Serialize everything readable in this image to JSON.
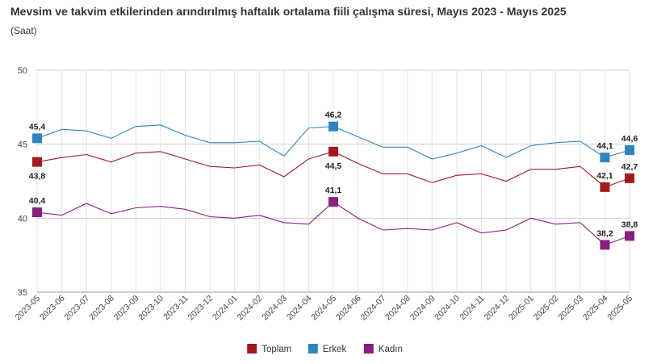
{
  "chart_data": {
    "type": "line",
    "title": "Mevsim ve takvim etkilerinden arındırılmış haftalık ortalama fiili çalışma süresi, Mayıs 2023 - Mayıs 2025",
    "subtitle": "(Saat)",
    "xlabel": "",
    "ylabel": "",
    "ylim": [
      35,
      50
    ],
    "yticks": [
      "35",
      "40",
      "45",
      "50"
    ],
    "grid": "vertical",
    "legend_position": "bottom-center",
    "categories": [
      "2023-05",
      "2023-06",
      "2023-07",
      "2023-08",
      "2023-09",
      "2023-10",
      "2023-11",
      "2023-12",
      "2024-01",
      "2024-02",
      "2024-03",
      "2024-04",
      "2024-05",
      "2024-06",
      "2024-07",
      "2024-08",
      "2024-09",
      "2024-10",
      "2024-11",
      "2024-12",
      "2025-01",
      "2025-02",
      "2025-03",
      "2025-04",
      "2025-05"
    ],
    "series": [
      {
        "name": "Toplam",
        "color": "#a31a1e",
        "values": [
          43.8,
          44.1,
          44.3,
          43.8,
          44.4,
          44.5,
          44.0,
          43.5,
          43.4,
          43.6,
          42.8,
          44.0,
          44.5,
          43.7,
          43.0,
          43.0,
          42.4,
          42.9,
          43.0,
          42.5,
          43.3,
          43.3,
          43.5,
          42.1,
          42.7
        ],
        "labels": [
          {
            "index": 0,
            "text": "43,8",
            "pos": "below"
          },
          {
            "index": 12,
            "text": "44,5",
            "pos": "below"
          },
          {
            "index": 23,
            "text": "42,1",
            "pos": "above"
          },
          {
            "index": 24,
            "text": "42,7",
            "pos": "above"
          }
        ]
      },
      {
        "name": "Erkek",
        "color": "#2e86c1",
        "values": [
          45.4,
          46.0,
          45.9,
          45.4,
          46.2,
          46.3,
          45.6,
          45.1,
          45.1,
          45.2,
          44.2,
          46.1,
          46.2,
          45.5,
          44.8,
          44.8,
          44.0,
          44.4,
          44.9,
          44.1,
          44.9,
          45.1,
          45.2,
          44.1,
          44.6
        ],
        "labels": [
          {
            "index": 0,
            "text": "45,4",
            "pos": "above"
          },
          {
            "index": 12,
            "text": "46,2",
            "pos": "above"
          },
          {
            "index": 23,
            "text": "44,1",
            "pos": "above"
          },
          {
            "index": 24,
            "text": "44,6",
            "pos": "above"
          }
        ]
      },
      {
        "name": "Kadın",
        "color": "#8b1f7e",
        "values": [
          40.4,
          40.2,
          41.0,
          40.3,
          40.7,
          40.8,
          40.6,
          40.1,
          40.0,
          40.2,
          39.7,
          39.6,
          41.1,
          40.0,
          39.2,
          39.3,
          39.2,
          39.7,
          39.0,
          39.2,
          40.0,
          39.6,
          39.7,
          38.2,
          38.8
        ],
        "labels": [
          {
            "index": 0,
            "text": "40,4",
            "pos": "above"
          },
          {
            "index": 12,
            "text": "41,1",
            "pos": "above"
          },
          {
            "index": 23,
            "text": "38,2",
            "pos": "above"
          },
          {
            "index": 24,
            "text": "38,8",
            "pos": "above"
          }
        ]
      }
    ]
  }
}
